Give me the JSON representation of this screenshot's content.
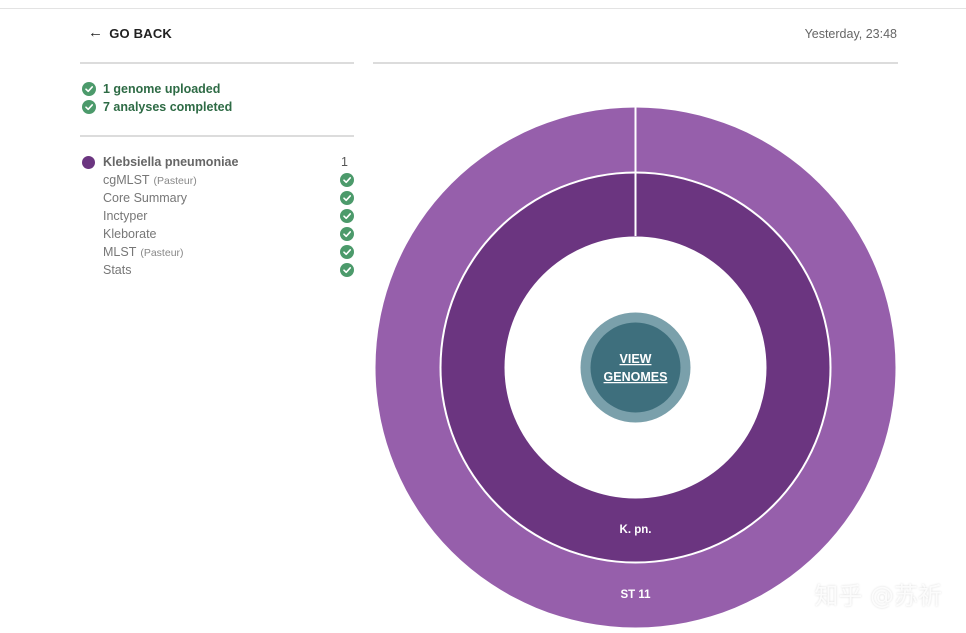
{
  "header": {
    "go_back_label": "GO BACK",
    "timestamp": "Yesterday, 23:48"
  },
  "summary": {
    "genomes_uploaded": "1 genome uploaded",
    "analyses_completed": "7 analyses completed"
  },
  "species": {
    "name": "Klebsiella pneumoniae",
    "count": "1",
    "color": "#6b3580",
    "analyses": [
      {
        "name": "cgMLST",
        "sub": "(Pasteur)",
        "status": "complete"
      },
      {
        "name": "Core Summary",
        "sub": "",
        "status": "complete"
      },
      {
        "name": "Inctyper",
        "sub": "",
        "status": "complete"
      },
      {
        "name": "Kleborate",
        "sub": "",
        "status": "complete"
      },
      {
        "name": "MLST",
        "sub": "(Pasteur)",
        "status": "complete"
      },
      {
        "name": "Stats",
        "sub": "",
        "status": "complete"
      }
    ]
  },
  "chart": {
    "view_line1": "VIEW",
    "view_line2": "GENOMES",
    "inner_label": "K. pn.",
    "outer_label": "ST 11",
    "inner_color": "#6b3580",
    "outer_color": "#965fab",
    "button_color": "#3e6f7d",
    "button_ring_color": "#7aa0ab"
  },
  "watermark": "知乎 @苏祈",
  "colors": {
    "success_green": "#4c9a6b",
    "success_text": "#2e6b45"
  }
}
